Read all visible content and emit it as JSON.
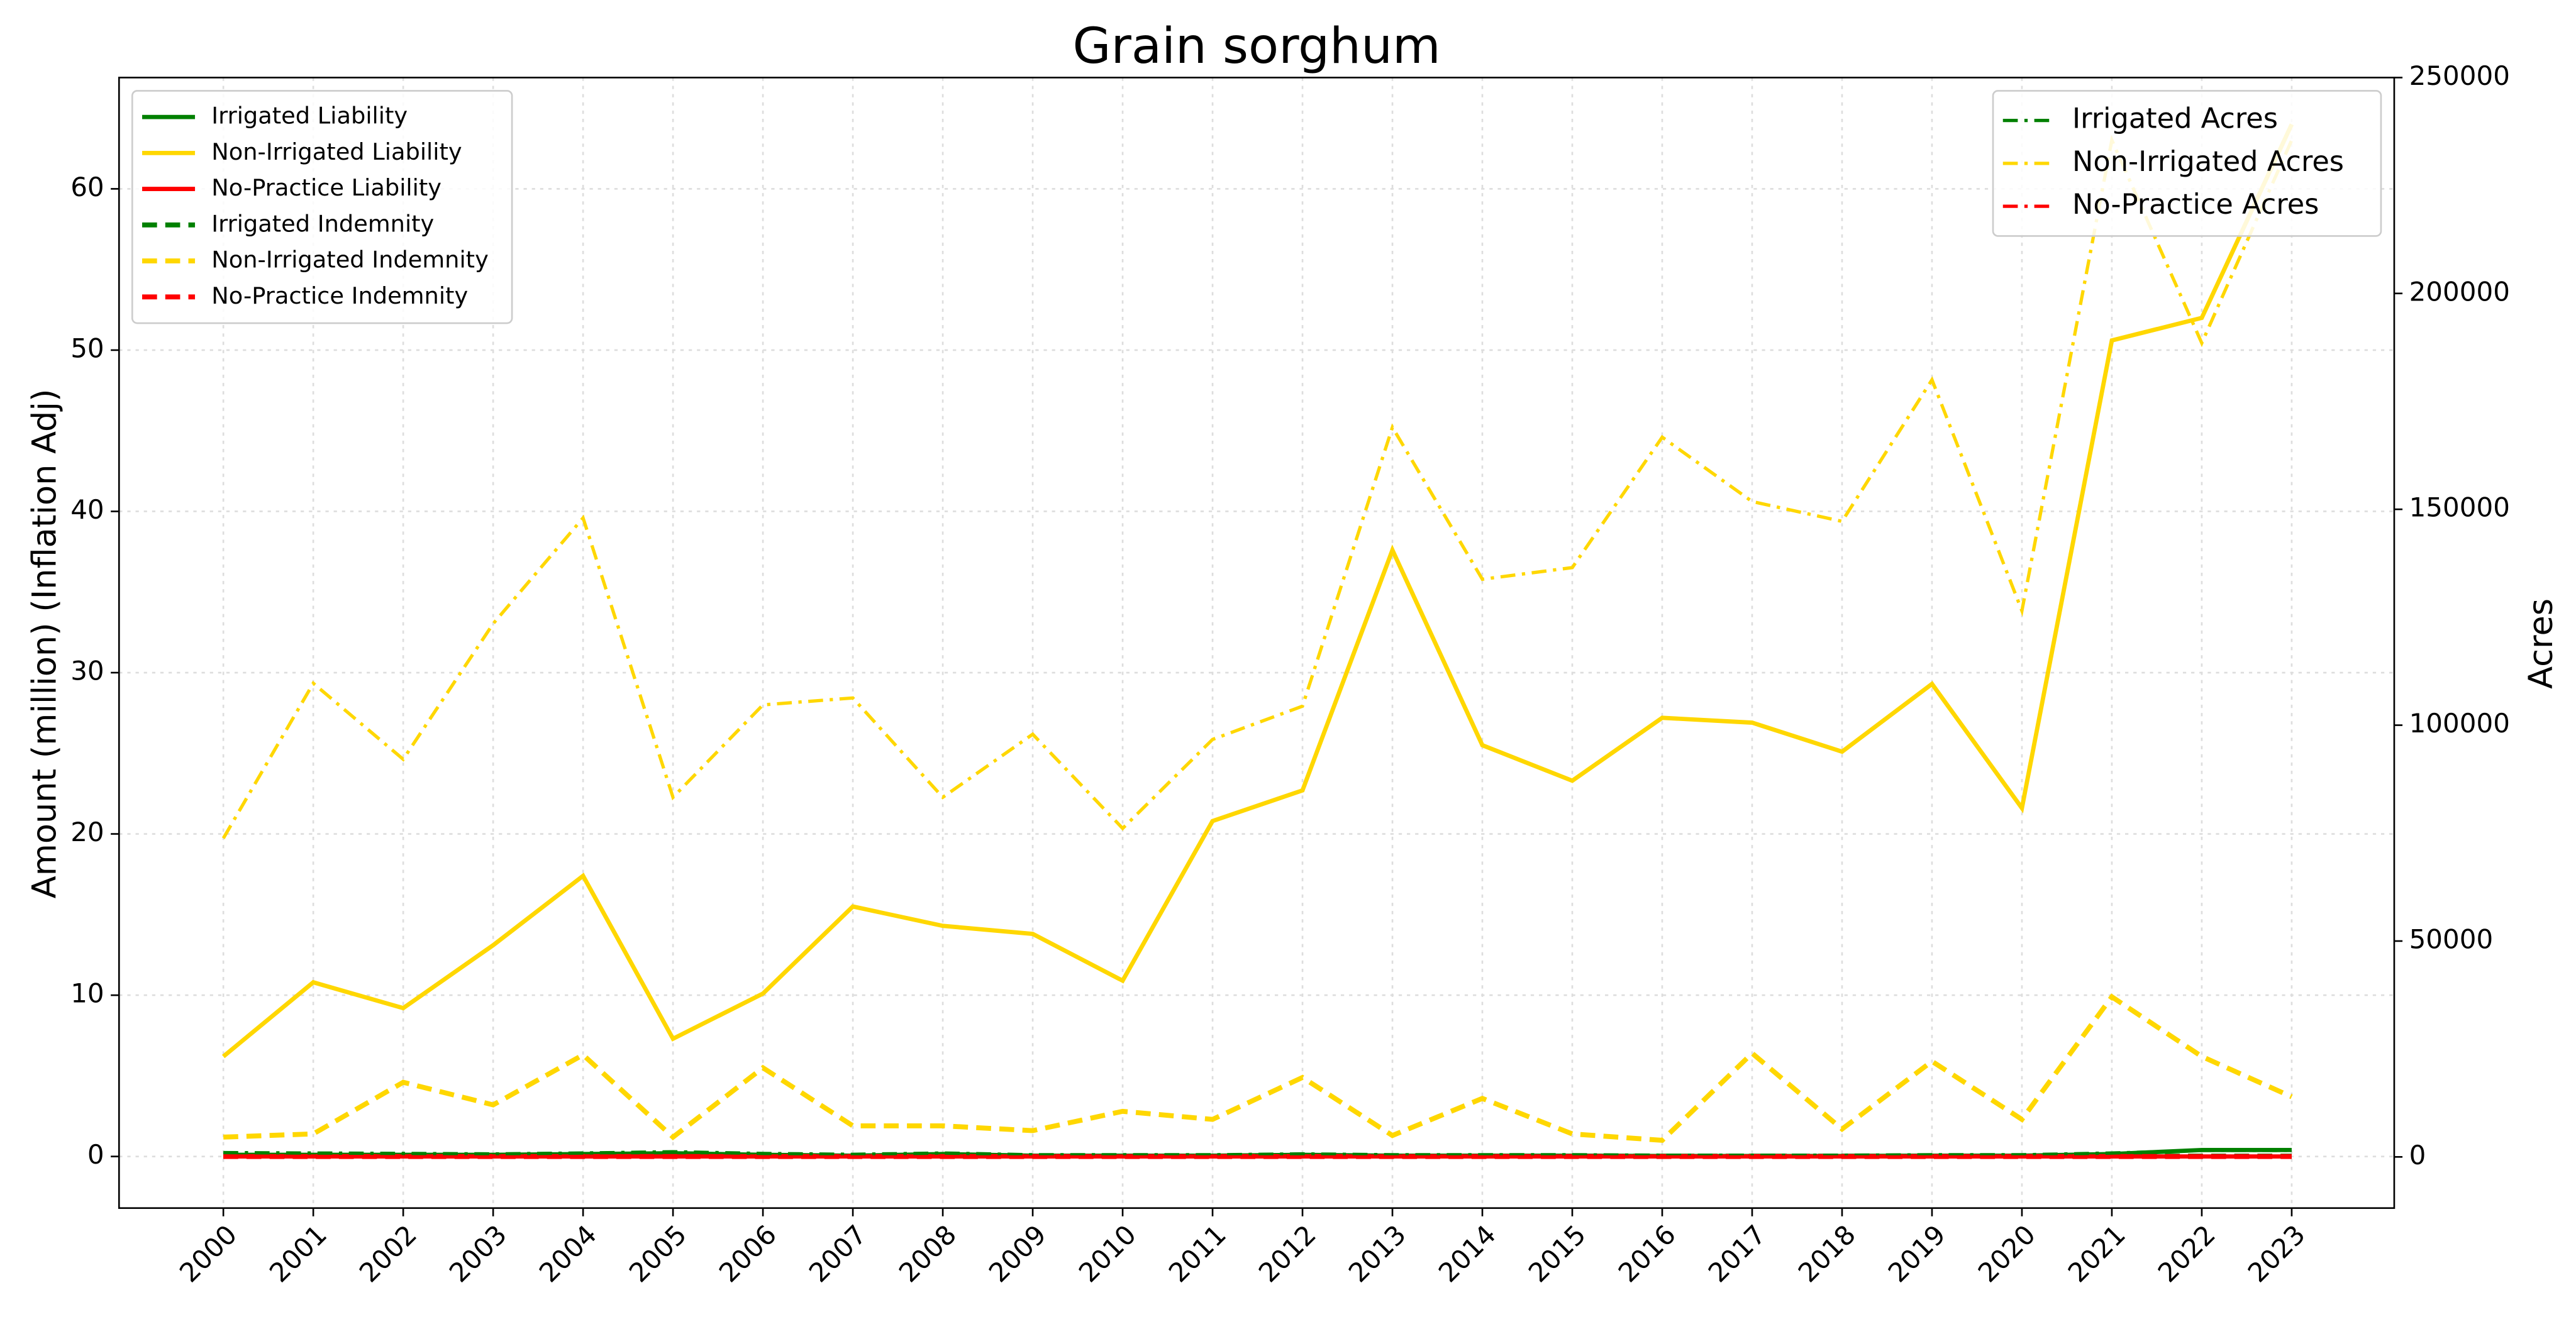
{
  "chart_data": {
    "type": "line",
    "title": "Grain sorghum",
    "ylabel": "Amount (million) (Inflation Adj)",
    "y2label": "Acres",
    "x": [
      2000,
      2001,
      2002,
      2003,
      2004,
      2005,
      2006,
      2007,
      2008,
      2009,
      2010,
      2011,
      2012,
      2013,
      2014,
      2015,
      2016,
      2017,
      2018,
      2019,
      2020,
      2021,
      2022,
      2023
    ],
    "xlim": [
      1998.84,
      2024.14
    ],
    "xticks": [
      2000,
      2001,
      2002,
      2003,
      2004,
      2005,
      2006,
      2007,
      2008,
      2009,
      2010,
      2011,
      2012,
      2013,
      2014,
      2015,
      2016,
      2017,
      2018,
      2019,
      2020,
      2021,
      2022,
      2023
    ],
    "ylim": [
      -3.2,
      66.9
    ],
    "yticks": [
      0,
      10,
      20,
      30,
      40,
      50,
      60
    ],
    "y2lim": [
      -11850,
      250000
    ],
    "y2ticks": [
      0,
      50000,
      100000,
      150000,
      200000,
      250000
    ],
    "grid": true,
    "legend": "upper left",
    "legend2": "upper right",
    "series": [
      {
        "name": "Irrigated Liability",
        "color": "#008000",
        "linestyle": "solid",
        "values": [
          0.1,
          0.1,
          0.1,
          0.1,
          0.15,
          0.2,
          0.1,
          0.05,
          0.15,
          0.05,
          0.05,
          0.05,
          0.1,
          0.05,
          0.05,
          0.05,
          0.03,
          0.03,
          0.03,
          0.05,
          0.05,
          0.15,
          0.4,
          0.4
        ]
      },
      {
        "name": "Non-Irrigated Liability",
        "color": "#FFD700",
        "linestyle": "solid",
        "values": [
          6.2,
          10.8,
          9.2,
          13.1,
          17.4,
          7.3,
          10.1,
          15.5,
          14.3,
          13.8,
          10.9,
          20.8,
          22.7,
          37.6,
          25.5,
          23.3,
          27.2,
          26.9,
          25.1,
          29.3,
          21.6,
          50.6,
          52.0,
          64.0
        ]
      },
      {
        "name": "No-Practice Liability",
        "color": "#FF0000",
        "linestyle": "solid",
        "values": [
          0,
          0,
          0,
          0,
          0,
          0,
          0,
          0,
          0,
          0,
          0,
          0,
          0,
          0,
          0,
          0,
          0,
          0,
          0,
          0,
          0,
          0,
          0,
          0
        ]
      },
      {
        "name": "Irrigated Indemnity",
        "color": "#008000",
        "linestyle": "dashed",
        "values": [
          0.05,
          0.05,
          0.02,
          0.02,
          0.05,
          0.2,
          0.02,
          0.02,
          0.02,
          0.02,
          0.02,
          0.02,
          0.05,
          0.02,
          0.02,
          0.02,
          0.02,
          0.02,
          0.02,
          0.02,
          0.02,
          0.02,
          0.02,
          0.02
        ]
      },
      {
        "name": "Non-Irrigated Indemnity",
        "color": "#FFD700",
        "linestyle": "dashed",
        "values": [
          1.2,
          1.4,
          4.6,
          3.2,
          6.3,
          1.2,
          5.5,
          1.9,
          1.9,
          1.6,
          2.8,
          2.3,
          4.9,
          1.3,
          3.6,
          1.4,
          1.0,
          6.4,
          1.7,
          5.9,
          2.3,
          9.9,
          6.2,
          3.7
        ]
      },
      {
        "name": "No-Practice Indemnity",
        "color": "#FF0000",
        "linestyle": "dashed",
        "values": [
          0,
          0,
          0,
          0,
          0,
          0,
          0,
          0,
          0,
          0,
          0,
          0,
          0,
          0,
          0,
          0,
          0,
          0,
          0,
          0,
          0,
          0,
          0,
          0
        ]
      },
      {
        "name": "Irrigated Acres",
        "color": "#008000",
        "linestyle": "dashdot",
        "axis": "y2",
        "values": [
          1000,
          900,
          800,
          700,
          900,
          1200,
          800,
          600,
          900,
          500,
          500,
          500,
          700,
          500,
          500,
          500,
          400,
          400,
          400,
          500,
          500,
          900,
          1500,
          1500
        ]
      },
      {
        "name": "Non-Irrigated Acres",
        "color": "#FFD700",
        "linestyle": "dashdot",
        "axis": "y2",
        "values": [
          73800,
          109700,
          92100,
          123500,
          148000,
          83300,
          104700,
          106300,
          83300,
          97900,
          76100,
          96700,
          104400,
          169000,
          133800,
          136500,
          166700,
          151800,
          147200,
          180000,
          126500,
          235500,
          188500,
          235500
        ]
      },
      {
        "name": "No-Practice Acres",
        "color": "#FF0000",
        "linestyle": "dashdot",
        "axis": "y2",
        "values": [
          0,
          0,
          0,
          0,
          0,
          0,
          0,
          0,
          0,
          0,
          0,
          0,
          0,
          0,
          0,
          0,
          0,
          0,
          0,
          0,
          0,
          0,
          0,
          0
        ]
      }
    ]
  }
}
